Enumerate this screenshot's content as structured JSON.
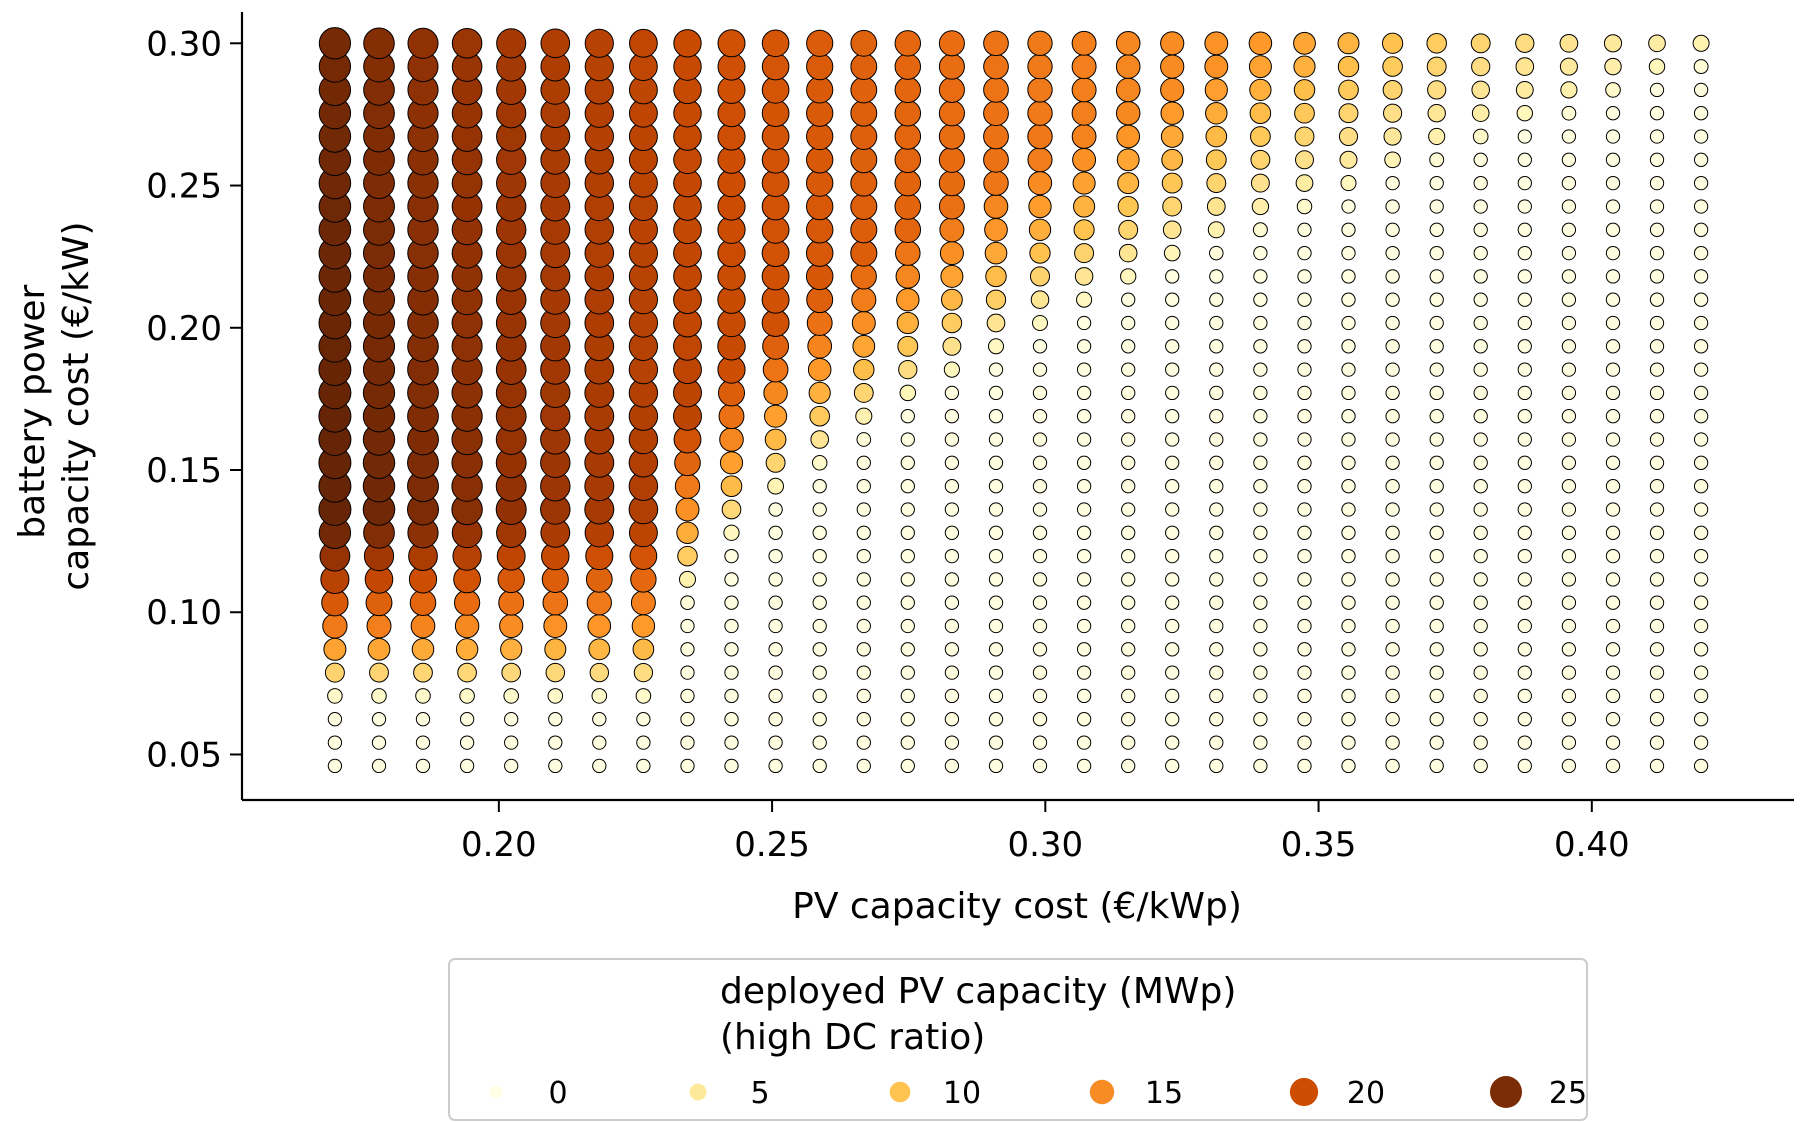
{
  "chart_data": {
    "type": "scatter",
    "xlabel": "PV capacity cost (€/kWp)",
    "ylabel": [
      "battery power",
      "capacity cost (€/kW)"
    ],
    "xlim": [
      0.153,
      0.437
    ],
    "ylim": [
      0.034,
      0.311
    ],
    "x_ticks": [
      "0.20",
      "0.25",
      "0.30",
      "0.35",
      "0.40"
    ],
    "x_tick_values": [
      0.2,
      0.25,
      0.3,
      0.35,
      0.4
    ],
    "y_ticks": [
      "0.05",
      "0.10",
      "0.15",
      "0.20",
      "0.25",
      "0.30"
    ],
    "y_tick_values": [
      0.05,
      0.1,
      0.15,
      0.2,
      0.25,
      0.3
    ],
    "grid": false,
    "x_values": {
      "start": 0.17,
      "stop": 0.42,
      "count": 32
    },
    "y_values": {
      "start": 0.046,
      "stop": 0.3,
      "count": 32
    },
    "size_color_variable": "deployed PV capacity (MWp)",
    "value_range": [
      0,
      25
    ],
    "marker_edge_color": "#000000",
    "colormap": [
      "#ffffe5",
      "#fff7bc",
      "#fee391",
      "#fec44f",
      "#fe9929",
      "#ec7014",
      "#cc4c02",
      "#993404",
      "#662506"
    ],
    "legend": {
      "title_lines": [
        "deployed PV capacity (MWp)",
        "(high DC ratio)"
      ],
      "placement": "below",
      "items": [
        {
          "label": "0",
          "value": 0,
          "color": "#ffffe5"
        },
        {
          "label": "5",
          "value": 5,
          "color": "#fee89a"
        },
        {
          "label": "10",
          "value": 10,
          "color": "#fec44f"
        },
        {
          "label": "15",
          "value": 15,
          "color": "#f68c23"
        },
        {
          "label": "20",
          "value": 20,
          "color": "#cc4c02"
        },
        {
          "label": "25",
          "value": 25,
          "color": "#7a2c05"
        }
      ]
    }
  }
}
